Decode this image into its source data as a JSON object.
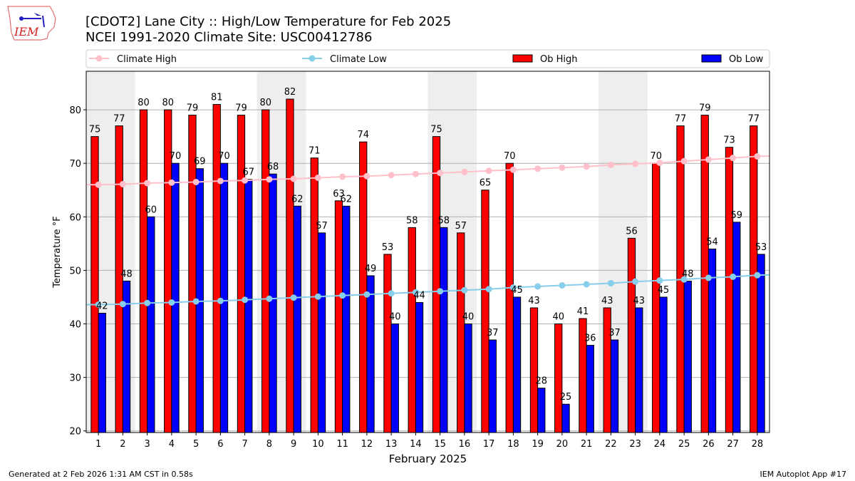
{
  "logo_text": "IEM",
  "title_line1": "[CDOT2] Lane City :: High/Low Temperature for Feb 2025",
  "title_line2": "NCEI 1991-2020 Climate Site: USC00412786",
  "footer_left": "Generated at 2 Feb 2026 1:31 AM CST in 0.58s",
  "footer_right": "IEM Autoplot App #17",
  "chart_data": {
    "type": "bar",
    "xlabel": "February 2025",
    "ylabel": "Temperature °F",
    "xlim": [
      0.5,
      28.5
    ],
    "ylim": [
      19.7,
      87.2
    ],
    "yticks": [
      20,
      30,
      40,
      50,
      60,
      70,
      80
    ],
    "grid": "y",
    "legend_placement": "top",
    "weekend_shading_days": [
      [
        1,
        2
      ],
      [
        8,
        9
      ],
      [
        15,
        16
      ],
      [
        22,
        23
      ]
    ],
    "categories": [
      1,
      2,
      3,
      4,
      5,
      6,
      7,
      8,
      9,
      10,
      11,
      12,
      13,
      14,
      15,
      16,
      17,
      18,
      19,
      20,
      21,
      22,
      23,
      24,
      25,
      26,
      27,
      28
    ],
    "series": [
      {
        "name": "Ob High",
        "type": "bar",
        "color": "#ff0000",
        "values": [
          75,
          77,
          80,
          80,
          79,
          81,
          79,
          80,
          82,
          71,
          63,
          74,
          53,
          58,
          75,
          57,
          65,
          70,
          43,
          40,
          41,
          43,
          56,
          70,
          77,
          79,
          73,
          77
        ]
      },
      {
        "name": "Ob Low",
        "type": "bar",
        "color": "#0000ff",
        "values": [
          42,
          48,
          60,
          70,
          69,
          70,
          67,
          68,
          62,
          57,
          62,
          49,
          40,
          44,
          58,
          40,
          37,
          45,
          28,
          25,
          36,
          37,
          43,
          45,
          48,
          54,
          59,
          53
        ]
      },
      {
        "name": "Climate High",
        "type": "line",
        "color": "#ffc0cb",
        "values": [
          66.0,
          66.1,
          66.3,
          66.4,
          66.5,
          66.7,
          66.8,
          67.0,
          67.1,
          67.3,
          67.5,
          67.6,
          67.8,
          68.0,
          68.2,
          68.4,
          68.6,
          68.8,
          69.0,
          69.2,
          69.4,
          69.7,
          69.9,
          70.1,
          70.4,
          70.7,
          71.0,
          71.3
        ]
      },
      {
        "name": "Climate Low",
        "type": "line",
        "color": "#87ceeb",
        "values": [
          43.6,
          43.7,
          43.9,
          44.0,
          44.2,
          44.3,
          44.5,
          44.7,
          44.9,
          45.1,
          45.3,
          45.5,
          45.7,
          45.9,
          46.1,
          46.3,
          46.5,
          46.8,
          47.0,
          47.2,
          47.4,
          47.6,
          47.9,
          48.1,
          48.3,
          48.6,
          48.8,
          49.1
        ]
      }
    ]
  }
}
